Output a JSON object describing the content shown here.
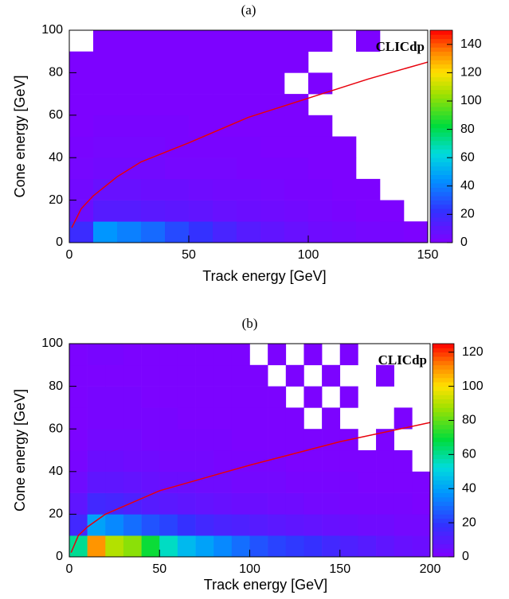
{
  "chart_data": [
    {
      "type": "heatmap",
      "title": "(a)",
      "x_label": "Track energy [GeV]",
      "y_label": "Cone energy [GeV]",
      "annotation": "CLICdp",
      "xlim": [
        0,
        150
      ],
      "xticks": [
        0,
        50,
        100,
        150
      ],
      "ylim": [
        0,
        100
      ],
      "yticks": [
        0,
        20,
        40,
        60,
        80,
        100
      ],
      "zlim": [
        0,
        150
      ],
      "zticks": [
        0,
        20,
        40,
        60,
        80,
        100,
        120,
        140
      ],
      "xbins": [
        0,
        10,
        20,
        30,
        40,
        50,
        60,
        70,
        80,
        90,
        100,
        110,
        120,
        130,
        140,
        150
      ],
      "ybins": [
        0,
        10,
        20,
        30,
        40,
        50,
        60,
        70,
        80,
        90,
        100
      ],
      "z": [
        [
          20,
          45,
          40,
          35,
          28,
          22,
          16,
          12,
          9,
          7,
          5,
          4,
          3,
          2,
          1
        ],
        [
          6,
          12,
          12,
          11,
          10,
          9,
          7,
          6,
          5,
          4,
          3,
          2,
          1,
          1,
          null
        ],
        [
          4,
          7,
          7,
          6,
          6,
          5,
          4,
          4,
          3,
          2,
          2,
          1,
          1,
          null,
          null
        ],
        [
          3,
          4,
          4,
          4,
          3,
          3,
          3,
          2,
          2,
          2,
          1,
          1,
          null,
          null,
          null
        ],
        [
          2,
          3,
          3,
          3,
          2,
          2,
          2,
          2,
          1,
          1,
          1,
          1,
          null,
          null,
          null
        ],
        [
          1,
          2,
          2,
          2,
          2,
          1,
          1,
          1,
          1,
          1,
          1,
          null,
          null,
          null,
          null
        ],
        [
          1,
          1,
          1,
          1,
          1,
          1,
          1,
          1,
          1,
          1,
          null,
          null,
          null,
          null,
          null
        ],
        [
          1,
          1,
          1,
          1,
          1,
          1,
          1,
          1,
          1,
          null,
          1,
          null,
          null,
          null,
          null
        ],
        [
          1,
          1,
          1,
          1,
          1,
          1,
          1,
          1,
          1,
          1,
          null,
          null,
          null,
          null,
          null
        ],
        [
          null,
          1,
          1,
          1,
          1,
          1,
          1,
          1,
          1,
          1,
          1,
          null,
          1,
          null,
          null
        ]
      ],
      "curve": {
        "color": "#e8000b",
        "x": [
          1,
          5,
          10,
          20,
          30,
          50,
          75,
          100,
          125,
          150
        ],
        "y": [
          7,
          16,
          22,
          31,
          38,
          47,
          59,
          68,
          77,
          85
        ]
      }
    },
    {
      "type": "heatmap",
      "title": "(b)",
      "x_label": "Track energy [GeV]",
      "y_label": "Cone energy [GeV]",
      "annotation": "CLICdp",
      "xlim": [
        0,
        200
      ],
      "xticks": [
        0,
        50,
        100,
        150,
        200
      ],
      "ylim": [
        0,
        100
      ],
      "yticks": [
        0,
        20,
        40,
        60,
        80,
        100
      ],
      "zlim": [
        0,
        125
      ],
      "zticks": [
        0,
        20,
        40,
        60,
        80,
        100,
        120
      ],
      "xbins": [
        0,
        10,
        20,
        30,
        40,
        50,
        60,
        70,
        80,
        90,
        100,
        110,
        120,
        130,
        140,
        150,
        160,
        170,
        180,
        190,
        200
      ],
      "ybins": [
        0,
        10,
        20,
        30,
        40,
        50,
        60,
        70,
        80,
        90,
        100
      ],
      "z": [
        [
          60,
          110,
          90,
          85,
          70,
          55,
          45,
          40,
          35,
          30,
          25,
          22,
          20,
          18,
          15,
          12,
          10,
          8,
          6,
          5
        ],
        [
          15,
          40,
          35,
          30,
          25,
          22,
          18,
          15,
          13,
          12,
          10,
          9,
          8,
          7,
          6,
          5,
          4,
          4,
          3,
          3
        ],
        [
          8,
          15,
          14,
          12,
          10,
          9,
          8,
          7,
          6,
          5,
          5,
          4,
          4,
          3,
          3,
          2,
          2,
          2,
          2,
          1
        ],
        [
          4,
          8,
          8,
          7,
          6,
          5,
          5,
          4,
          4,
          3,
          3,
          3,
          2,
          2,
          2,
          2,
          1,
          1,
          1,
          1
        ],
        [
          2,
          5,
          5,
          4,
          4,
          3,
          3,
          3,
          2,
          2,
          2,
          2,
          1,
          1,
          1,
          1,
          1,
          1,
          1,
          null
        ],
        [
          1,
          3,
          3,
          3,
          2,
          2,
          2,
          2,
          2,
          1,
          1,
          1,
          1,
          1,
          1,
          1,
          null,
          1,
          null,
          null
        ],
        [
          1,
          2,
          2,
          2,
          2,
          2,
          1,
          1,
          1,
          1,
          1,
          1,
          1,
          null,
          1,
          null,
          null,
          null,
          1,
          null
        ],
        [
          1,
          2,
          2,
          2,
          1,
          1,
          1,
          1,
          1,
          1,
          1,
          1,
          null,
          1,
          null,
          1,
          null,
          null,
          null,
          null
        ],
        [
          1,
          1,
          1,
          1,
          1,
          1,
          1,
          1,
          1,
          1,
          1,
          null,
          1,
          null,
          1,
          null,
          null,
          1,
          null,
          null
        ],
        [
          1,
          2,
          2,
          1,
          1,
          1,
          1,
          1,
          1,
          1,
          null,
          1,
          null,
          1,
          null,
          1,
          null,
          null,
          null,
          null
        ]
      ],
      "curve": {
        "color": "#e8000b",
        "x": [
          1,
          5,
          10,
          20,
          50,
          100,
          150,
          200
        ],
        "y": [
          2,
          10,
          14,
          20,
          31,
          43,
          54,
          63
        ]
      }
    }
  ]
}
